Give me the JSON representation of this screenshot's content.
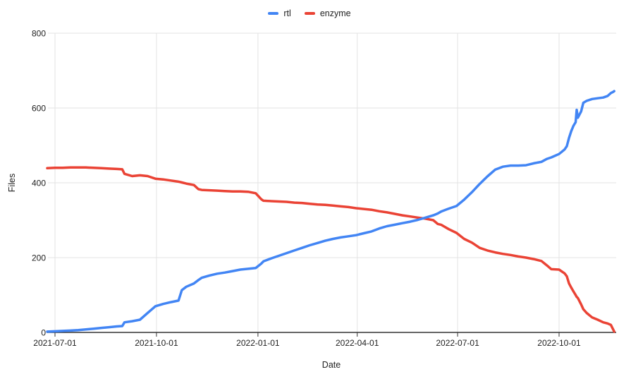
{
  "chart_data": {
    "type": "line",
    "title": "",
    "xlabel": "Date",
    "ylabel": "Files",
    "ylim": [
      0,
      800
    ],
    "grid": true,
    "legend_position": "top-center",
    "background_color": "#ffffff",
    "gridline_color": "#e3e3e3",
    "axis_color": "#333333",
    "text_color": "#212121",
    "y_ticks": [
      0,
      200,
      400,
      600,
      800
    ],
    "x_ticks": [
      "2021-07-01",
      "2021-10-01",
      "2022-01-01",
      "2022-04-01",
      "2022-07-01",
      "2022-10-01"
    ],
    "x": [
      "2021-06-24",
      "2021-07-01",
      "2021-07-08",
      "2021-07-15",
      "2021-07-22",
      "2021-07-29",
      "2021-08-05",
      "2021-08-12",
      "2021-08-19",
      "2021-08-26",
      "2021-08-31",
      "2021-09-02",
      "2021-09-09",
      "2021-09-16",
      "2021-09-23",
      "2021-09-30",
      "2021-10-07",
      "2021-10-14",
      "2021-10-21",
      "2021-10-24",
      "2021-10-28",
      "2021-11-04",
      "2021-11-08",
      "2021-11-11",
      "2021-11-18",
      "2021-11-25",
      "2021-12-02",
      "2021-12-09",
      "2021-12-16",
      "2021-12-23",
      "2021-12-30",
      "2022-01-04",
      "2022-01-06",
      "2022-01-13",
      "2022-01-20",
      "2022-01-27",
      "2022-02-03",
      "2022-02-10",
      "2022-02-17",
      "2022-02-24",
      "2022-03-03",
      "2022-03-10",
      "2022-03-17",
      "2022-03-24",
      "2022-03-31",
      "2022-04-07",
      "2022-04-14",
      "2022-04-21",
      "2022-04-28",
      "2022-05-05",
      "2022-05-12",
      "2022-05-19",
      "2022-05-26",
      "2022-06-02",
      "2022-06-09",
      "2022-06-13",
      "2022-06-16",
      "2022-06-23",
      "2022-06-30",
      "2022-07-07",
      "2022-07-14",
      "2022-07-21",
      "2022-07-28",
      "2022-08-04",
      "2022-08-11",
      "2022-08-18",
      "2022-08-25",
      "2022-09-01",
      "2022-09-08",
      "2022-09-15",
      "2022-09-20",
      "2022-09-24",
      "2022-10-01",
      "2022-10-06",
      "2022-10-08",
      "2022-10-10",
      "2022-10-12",
      "2022-10-14",
      "2022-10-16",
      "2022-10-17",
      "2022-10-18",
      "2022-10-21",
      "2022-10-23",
      "2022-10-26",
      "2022-10-31",
      "2022-11-05",
      "2022-11-10",
      "2022-11-14",
      "2022-11-17",
      "2022-11-19",
      "2022-11-20"
    ],
    "series": [
      {
        "name": "rtl",
        "color": "#4285f4",
        "values": [
          2,
          3,
          4,
          5,
          6,
          8,
          10,
          12,
          14,
          16,
          17,
          27,
          30,
          34,
          52,
          70,
          76,
          81,
          85,
          113,
          122,
          131,
          140,
          146,
          152,
          157,
          160,
          164,
          168,
          170,
          172,
          184,
          190,
          198,
          205,
          212,
          219,
          226,
          233,
          239,
          245,
          250,
          254,
          257,
          260,
          265,
          270,
          278,
          284,
          288,
          292,
          296,
          301,
          307,
          313,
          318,
          323,
          331,
          338,
          355,
          375,
          397,
          417,
          435,
          443,
          446,
          446,
          447,
          452,
          456,
          464,
          468,
          477,
          489,
          498,
          520,
          538,
          552,
          562,
          595,
          574,
          591,
          614,
          619,
          624,
          626,
          628,
          632,
          640,
          643,
          645
        ]
      },
      {
        "name": "enzyme",
        "color": "#ea4335",
        "values": [
          439,
          440,
          440,
          441,
          441,
          441,
          440,
          439,
          438,
          437,
          436,
          424,
          418,
          420,
          418,
          411,
          409,
          406,
          403,
          401,
          398,
          394,
          383,
          381,
          380,
          379,
          378,
          377,
          377,
          376,
          372,
          356,
          352,
          351,
          350,
          349,
          347,
          346,
          344,
          342,
          341,
          339,
          337,
          335,
          332,
          330,
          328,
          324,
          321,
          317,
          313,
          310,
          307,
          304,
          300,
          290,
          288,
          276,
          266,
          250,
          240,
          226,
          219,
          214,
          210,
          207,
          203,
          200,
          196,
          191,
          179,
          169,
          168,
          158,
          150,
          131,
          120,
          110,
          100,
          95,
          92,
          75,
          62,
          52,
          40,
          34,
          27,
          24,
          20,
          8,
          2
        ]
      }
    ]
  }
}
